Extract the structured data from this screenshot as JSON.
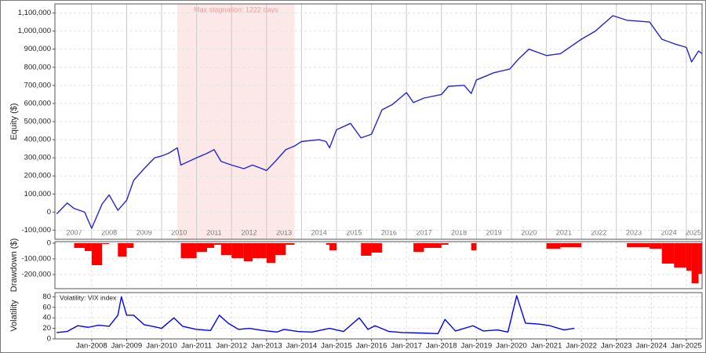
{
  "chart_data": [
    {
      "type": "line",
      "ylabel": "Equity ($)",
      "color": "#2424d8",
      "annotation": {
        "text": "Max stagnation: 1222 days",
        "x_start": 2010.45,
        "x_end": 2013.8,
        "color": "#fde8e8"
      },
      "x": [
        2007.0,
        2007.15,
        2007.3,
        2007.5,
        2007.8,
        2008.0,
        2008.3,
        2008.5,
        2008.75,
        2009.0,
        2009.2,
        2009.5,
        2009.8,
        2010.0,
        2010.2,
        2010.45,
        2010.55,
        2011.0,
        2011.3,
        2011.5,
        2011.7,
        2012.0,
        2012.35,
        2012.6,
        2013.0,
        2013.25,
        2013.55,
        2013.8,
        2014.0,
        2014.5,
        2014.7,
        2014.8,
        2015.0,
        2015.4,
        2015.7,
        2016.0,
        2016.3,
        2016.6,
        2017.0,
        2017.2,
        2017.5,
        2018.0,
        2018.2,
        2018.65,
        2018.85,
        2019.0,
        2019.5,
        2019.95,
        2020.2,
        2020.5,
        2021.0,
        2021.4,
        2022.0,
        2022.4,
        2022.9,
        2023.3,
        2023.95,
        2024.3,
        2024.65,
        2025.0,
        2025.15,
        2025.35,
        2025.45
      ],
      "values": [
        -10000,
        20000,
        50000,
        20000,
        0,
        -90000,
        45000,
        95000,
        10000,
        65000,
        175000,
        240000,
        300000,
        310000,
        325000,
        355000,
        260000,
        300000,
        325000,
        345000,
        280000,
        260000,
        240000,
        260000,
        230000,
        280000,
        345000,
        365000,
        390000,
        400000,
        390000,
        355000,
        455000,
        490000,
        410000,
        430000,
        565000,
        595000,
        660000,
        605000,
        630000,
        650000,
        695000,
        700000,
        655000,
        730000,
        770000,
        790000,
        845000,
        900000,
        865000,
        875000,
        955000,
        1000000,
        1085000,
        1060000,
        1050000,
        955000,
        930000,
        910000,
        830000,
        890000,
        875000
      ],
      "xlim": [
        2006.95,
        2025.45
      ],
      "xticks": [
        {
          "value": 2007.5,
          "label": "2007"
        },
        {
          "value": 2008.5,
          "label": "2008"
        },
        {
          "value": 2009.5,
          "label": "2009"
        },
        {
          "value": 2010.5,
          "label": "2010"
        },
        {
          "value": 2011.5,
          "label": "2011"
        },
        {
          "value": 2012.5,
          "label": "2012"
        },
        {
          "value": 2013.5,
          "label": "2013"
        },
        {
          "value": 2014.5,
          "label": "2014"
        },
        {
          "value": 2015.5,
          "label": "2015"
        },
        {
          "value": 2016.5,
          "label": "2016"
        },
        {
          "value": 2017.5,
          "label": "2017"
        },
        {
          "value": 2018.5,
          "label": "2018"
        },
        {
          "value": 2019.5,
          "label": "2019"
        },
        {
          "value": 2020.5,
          "label": "2020"
        },
        {
          "value": 2021.5,
          "label": "2021"
        },
        {
          "value": 2022.5,
          "label": "2022"
        },
        {
          "value": 2023.5,
          "label": "2023"
        },
        {
          "value": 2024.5,
          "label": "2024"
        },
        {
          "value": 2025.2,
          "label": "2025"
        }
      ],
      "xgrid": [
        2008,
        2009,
        2010,
        2011,
        2012,
        2013,
        2014,
        2015,
        2016,
        2017,
        2018,
        2019,
        2020,
        2021,
        2022,
        2023,
        2024,
        2025
      ],
      "ylim": [
        -150000,
        1150000
      ],
      "yticks": [
        {
          "value": -100000,
          "label": "-100,000"
        },
        0,
        {
          "value": 100000,
          "label": "100,000"
        },
        {
          "value": 200000,
          "label": "200,000"
        },
        {
          "value": 300000,
          "label": "300,000"
        },
        {
          "value": 400000,
          "label": "400,000"
        },
        {
          "value": 500000,
          "label": "500,000"
        },
        {
          "value": 600000,
          "label": "600,000"
        },
        {
          "value": 700000,
          "label": "700,000"
        },
        {
          "value": 800000,
          "label": "800,000"
        },
        {
          "value": 900000,
          "label": "900,000"
        },
        {
          "value": 1000000,
          "label": "1,000,000"
        },
        {
          "value": 1100000,
          "label": "1,100,000"
        }
      ],
      "grid": true
    },
    {
      "type": "bar",
      "ylabel": "Drawdown ($)",
      "color": "#ff0000",
      "x": [
        2007.0,
        2007.15,
        2007.3,
        2007.5,
        2007.8,
        2008.0,
        2008.3,
        2008.5,
        2008.75,
        2009.0,
        2009.2,
        2009.5,
        2009.8,
        2010.0,
        2010.2,
        2010.45,
        2010.55,
        2011.0,
        2011.3,
        2011.5,
        2011.7,
        2012.0,
        2012.35,
        2012.6,
        2013.0,
        2013.25,
        2013.55,
        2013.8,
        2014.0,
        2014.5,
        2014.7,
        2014.8,
        2015.0,
        2015.4,
        2015.7,
        2016.0,
        2016.3,
        2016.6,
        2017.0,
        2017.2,
        2017.5,
        2018.0,
        2018.2,
        2018.65,
        2018.85,
        2019.0,
        2019.5,
        2019.95,
        2020.2,
        2020.5,
        2021.0,
        2021.4,
        2022.0,
        2022.4,
        2022.9,
        2023.3,
        2023.95,
        2024.3,
        2024.65,
        2025.0,
        2025.15,
        2025.35,
        2025.45
      ],
      "values": [
        0,
        0,
        0,
        -30000,
        -50000,
        -140000,
        -5000,
        0,
        -85000,
        -30000,
        0,
        0,
        0,
        0,
        0,
        0,
        -95000,
        -55000,
        -30000,
        -10000,
        -75000,
        -95000,
        -115000,
        -95000,
        -125000,
        -75000,
        -10000,
        0,
        0,
        0,
        -10000,
        -45000,
        0,
        0,
        -80000,
        -60000,
        0,
        0,
        0,
        -55000,
        -30000,
        -10000,
        0,
        0,
        -45000,
        0,
        0,
        0,
        0,
        0,
        -35000,
        -25000,
        0,
        0,
        0,
        -25000,
        -35000,
        -130000,
        -155000,
        -175000,
        -255000,
        -195000,
        -210000
      ],
      "xlim": [
        2006.95,
        2025.45
      ],
      "xgrid": [
        2008,
        2009,
        2010,
        2011,
        2012,
        2013,
        2014,
        2015,
        2016,
        2017,
        2018,
        2019,
        2020,
        2021,
        2022,
        2023,
        2024,
        2025
      ],
      "ylim": [
        -290000,
        10000
      ],
      "yticks": [
        {
          "value": -200000,
          "label": "-200,000"
        },
        {
          "value": -100000,
          "label": "-100,000"
        },
        0
      ],
      "grid": true
    },
    {
      "type": "line",
      "ylabel": "Volatility",
      "series": [
        {
          "name": "Volatility: VIX index",
          "color": "#0000ff",
          "values": [
            12,
            14,
            25,
            22,
            26,
            24,
            45,
            80,
            45,
            45,
            27,
            23,
            20,
            40,
            24,
            18,
            16,
            45,
            30,
            18,
            20,
            16,
            13,
            18,
            14,
            13,
            20,
            14,
            40,
            18,
            25,
            14,
            12,
            11,
            10,
            37,
            15,
            25,
            15,
            17,
            13,
            82,
            30,
            28,
            25,
            17,
            20
          ]
        }
      ],
      "x": [
        2007.0,
        2007.3,
        2007.6,
        2007.9,
        2008.2,
        2008.5,
        2008.75,
        2008.85,
        2009.0,
        2009.2,
        2009.5,
        2009.8,
        2010.0,
        2010.35,
        2010.6,
        2011.0,
        2011.4,
        2011.65,
        2011.9,
        2012.2,
        2012.5,
        2012.9,
        2013.3,
        2013.5,
        2013.9,
        2014.3,
        2014.8,
        2015.2,
        2015.65,
        2015.9,
        2016.1,
        2016.5,
        2016.9,
        2017.5,
        2017.9,
        2018.1,
        2018.4,
        2018.9,
        2019.2,
        2019.6,
        2019.9,
        2020.15,
        2020.4,
        2020.8,
        2021.1,
        2021.5,
        2021.8
      ],
      "xlim": [
        2006.95,
        2025.45
      ],
      "xticks": [
        {
          "value": 2008,
          "label": "Jan-2008"
        },
        {
          "value": 2009,
          "label": "Jan-2009"
        },
        {
          "value": 2010,
          "label": "Jan-2010"
        },
        {
          "value": 2011,
          "label": "Jan-2011"
        },
        {
          "value": 2012,
          "label": "Jan-2012"
        },
        {
          "value": 2013,
          "label": "Jan-2013"
        },
        {
          "value": 2014,
          "label": "Jan-2014"
        },
        {
          "value": 2015,
          "label": "Jan-2015"
        },
        {
          "value": 2016,
          "label": "Jan-2016"
        },
        {
          "value": 2017,
          "label": "Jan-2017"
        },
        {
          "value": 2018,
          "label": "Jan-2018"
        },
        {
          "value": 2019,
          "label": "Jan-2019"
        },
        {
          "value": 2020,
          "label": "Jan-2020"
        },
        {
          "value": 2021,
          "label": "Jan-2021"
        },
        {
          "value": 2022,
          "label": "Jan-2022"
        },
        {
          "value": 2023,
          "label": "Jan-2023"
        },
        {
          "value": 2024,
          "label": "Jan-2024"
        },
        {
          "value": 2025,
          "label": "Jan-2025"
        }
      ],
      "ylim": [
        0,
        88
      ],
      "yticks": [
        0,
        20,
        40,
        60,
        80
      ],
      "grid": true
    }
  ]
}
